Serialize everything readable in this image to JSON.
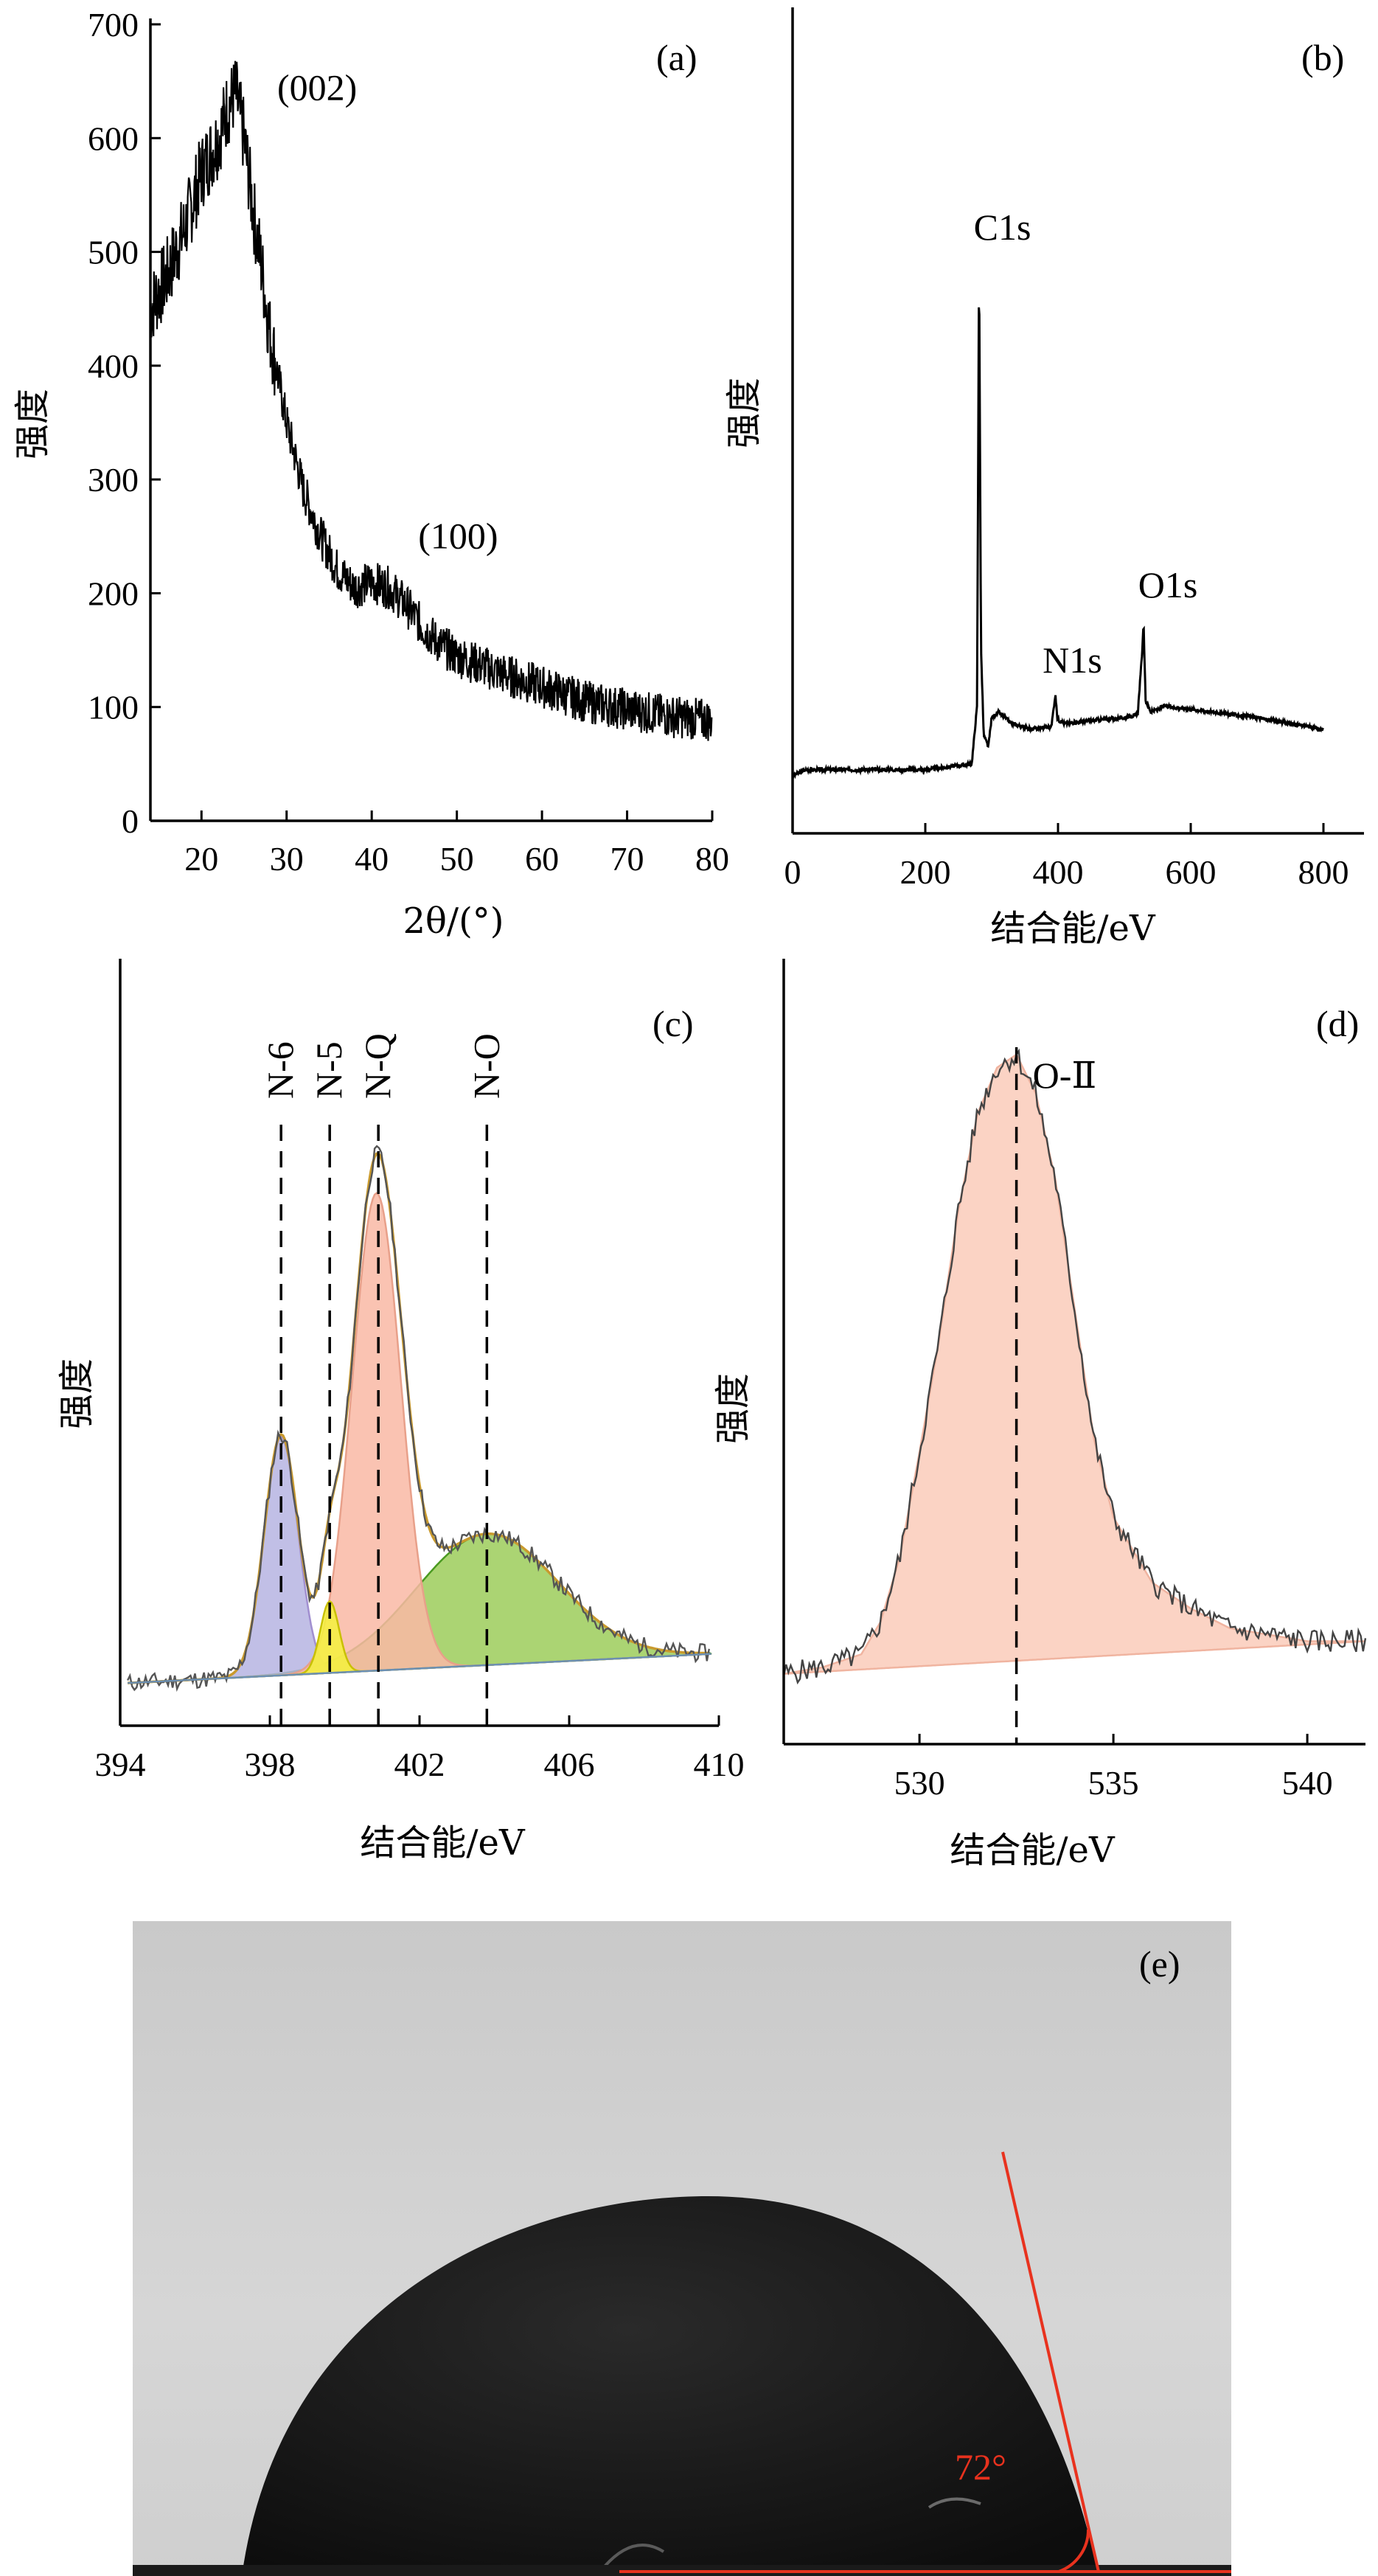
{
  "chart_data": [
    {
      "panel": "(a)",
      "type": "line",
      "xlabel": "2θ/(°)",
      "ylabel": "强度",
      "xlim": [
        14,
        80
      ],
      "ylim": [
        0,
        700
      ],
      "xticks": [
        20,
        30,
        40,
        50,
        60,
        70,
        80
      ],
      "yticks": [
        0,
        100,
        200,
        300,
        400,
        500,
        600,
        700
      ],
      "series": [
        {
          "x": [
            14,
            16,
            18,
            20,
            22,
            23,
            24,
            25,
            26,
            27,
            28,
            30,
            32,
            34,
            36,
            38,
            40,
            42,
            44,
            46,
            48,
            50,
            55,
            60,
            65,
            70,
            75,
            80
          ],
          "values": [
            450,
            480,
            520,
            570,
            600,
            625,
            640,
            600,
            540,
            490,
            430,
            350,
            290,
            250,
            220,
            205,
            210,
            205,
            190,
            170,
            155,
            145,
            130,
            118,
            105,
            98,
            92,
            88
          ]
        }
      ],
      "annotations": [
        {
          "text": "(002)",
          "x": 25,
          "y": 640
        },
        {
          "text": "(100)",
          "x": 42,
          "y": 215
        }
      ]
    },
    {
      "panel": "(b)",
      "type": "line",
      "xlabel": "结合能/eV",
      "ylabel": "强度",
      "xlim": [
        0,
        800
      ],
      "xticks": [
        0,
        200,
        400,
        600,
        800
      ],
      "series": [
        {
          "x": [
            0,
            20,
            100,
            200,
            270,
            278,
            281,
            284,
            288,
            295,
            300,
            310,
            330,
            360,
            390,
            396,
            399,
            402,
            410,
            450,
            500,
            520,
            526,
            529,
            532,
            540,
            560,
            600,
            700,
            800
          ],
          "values": [
            0.03,
            0.04,
            0.04,
            0.04,
            0.05,
            0.15,
            0.92,
            0.25,
            0.1,
            0.08,
            0.13,
            0.14,
            0.12,
            0.11,
            0.115,
            0.17,
            0.13,
            0.125,
            0.12,
            0.125,
            0.13,
            0.135,
            0.23,
            0.29,
            0.16,
            0.14,
            0.15,
            0.145,
            0.13,
            0.11
          ]
        }
      ],
      "annotations": [
        {
          "text": "C1s",
          "x": 284,
          "y": 0.92
        },
        {
          "text": "N1s",
          "x": 399,
          "y": 0.17
        },
        {
          "text": "O1s",
          "x": 532,
          "y": 0.29
        }
      ]
    },
    {
      "panel": "(c)",
      "type": "area",
      "xlabel": "结合能/eV",
      "ylabel": "强度",
      "xlim": [
        394,
        410
      ],
      "xticks": [
        394,
        398,
        402,
        406,
        410
      ],
      "peak_lines": [
        {
          "name": "N-6",
          "x": 398.3
        },
        {
          "name": "N-5",
          "x": 399.6
        },
        {
          "name": "N-Q",
          "x": 400.9
        },
        {
          "name": "N-O",
          "x": 403.8
        }
      ],
      "series": [
        {
          "x": [
            394,
            395,
            396,
            397,
            397.5,
            398,
            398.3,
            398.8,
            399.3,
            400,
            400.5,
            400.9,
            401.3,
            401.8,
            402.3,
            403,
            403.8,
            404.5,
            405.5,
            406.5,
            407.5,
            408.5,
            409,
            410
          ],
          "values": [
            0.05,
            0.05,
            0.06,
            0.09,
            0.25,
            0.48,
            0.53,
            0.45,
            0.4,
            0.65,
            0.93,
            0.97,
            0.85,
            0.55,
            0.42,
            0.33,
            0.32,
            0.3,
            0.25,
            0.2,
            0.14,
            0.11,
            0.1,
            0.09
          ]
        }
      ]
    },
    {
      "panel": "(d)",
      "type": "area",
      "xlabel": "结合能/eV",
      "ylabel": "强度",
      "xlim": [
        526.5,
        541.5
      ],
      "xticks": [
        530,
        535,
        540
      ],
      "peak_lines": [
        {
          "name": "O-Ⅱ",
          "x": 532.5
        }
      ],
      "series": [
        {
          "x": [
            526.5,
            527.5,
            528.5,
            529,
            529.5,
            530,
            530.5,
            531,
            531.5,
            532,
            532.5,
            533,
            533.5,
            534,
            534.5,
            535,
            536,
            537,
            538,
            539,
            540,
            541.5
          ],
          "values": [
            0.04,
            0.05,
            0.07,
            0.12,
            0.22,
            0.38,
            0.55,
            0.75,
            0.9,
            0.97,
            0.99,
            0.93,
            0.8,
            0.6,
            0.4,
            0.28,
            0.18,
            0.14,
            0.11,
            0.1,
            0.09,
            0.09
          ]
        }
      ]
    }
  ],
  "panel_e": {
    "label": "(e)",
    "angle_label": "72°",
    "line_color": "#e8321e"
  },
  "colors": {
    "n6_fill": "#b6b4e2",
    "n5_fill": "#f5f23c",
    "nq_fill": "#f9b9a4",
    "no_fill": "#9ccc5a",
    "envelope": "#c99a2e",
    "o2_fill": "#fbd3c4"
  }
}
